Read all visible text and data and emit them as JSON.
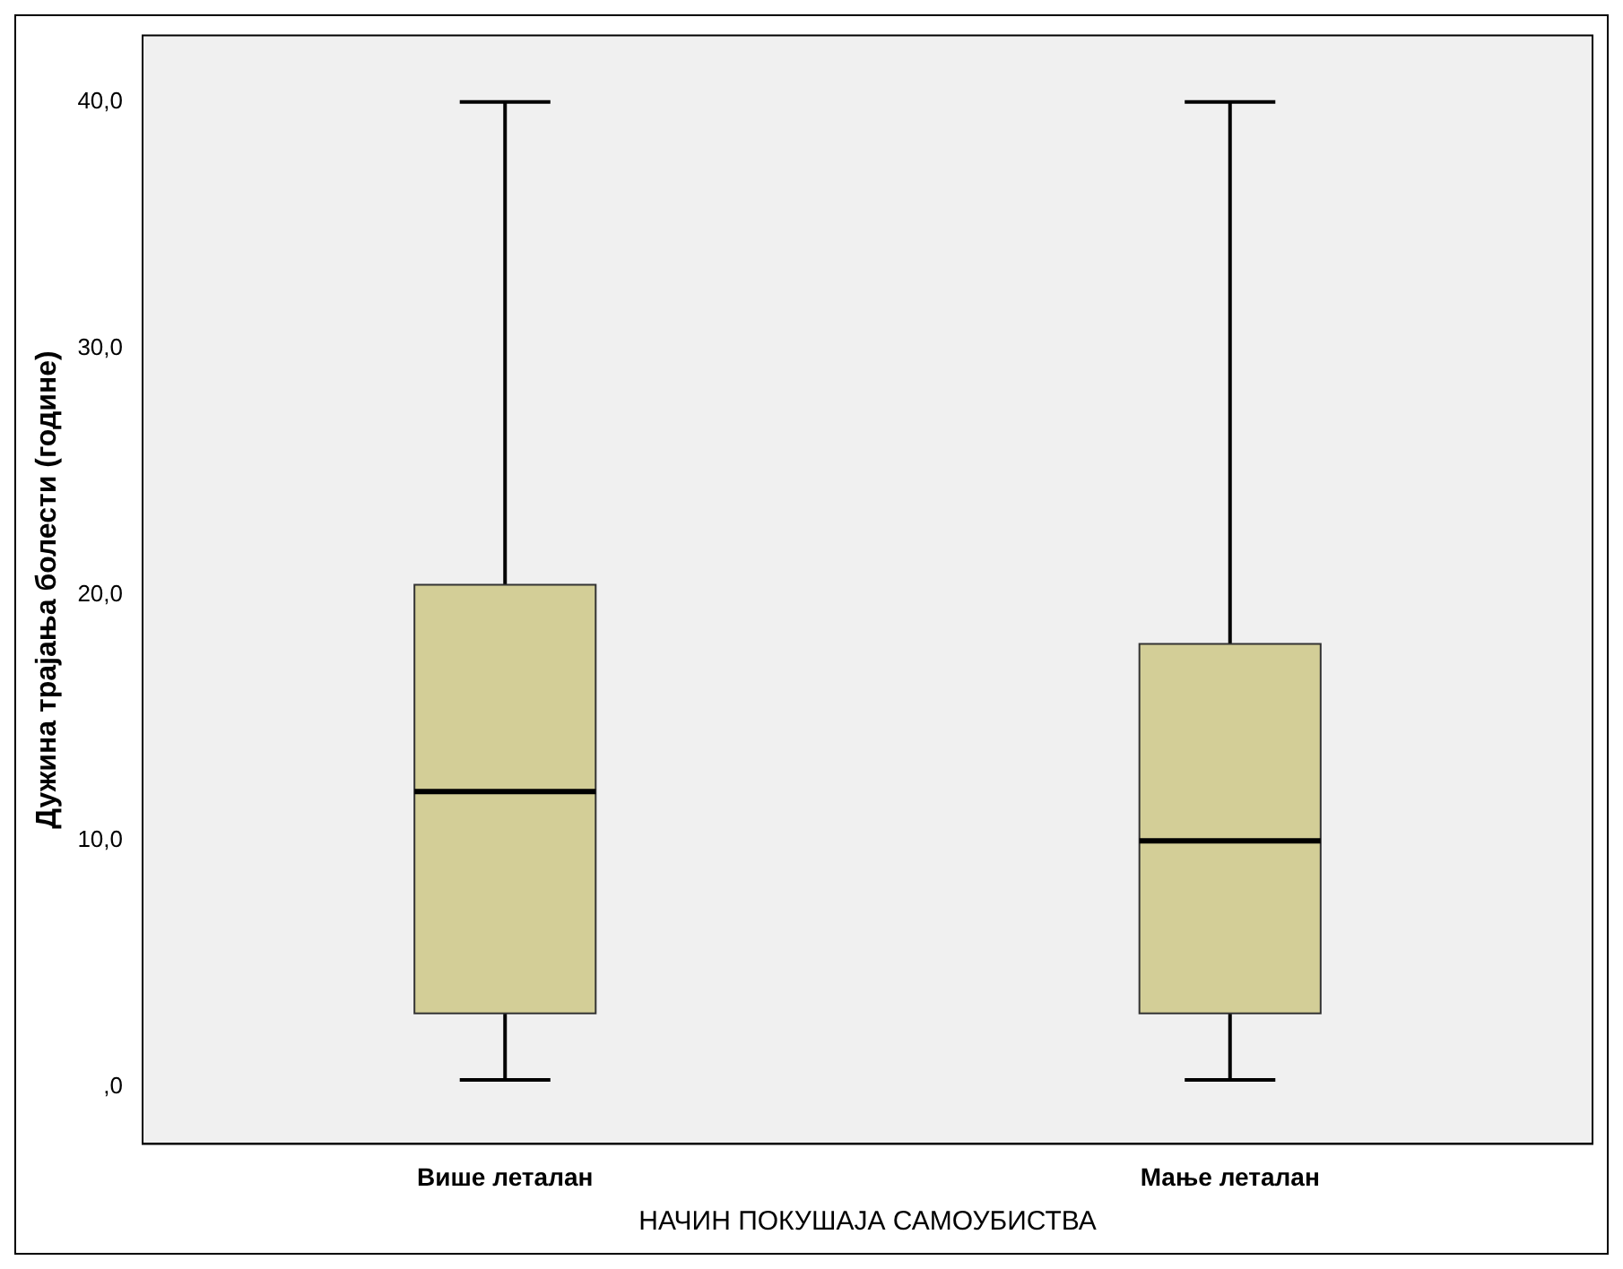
{
  "chart_data": {
    "type": "box",
    "xlabel": "НАЧИН ПОКУШАЈА САМОУБИСТВА",
    "ylabel": "Дужина трајања болести (године)",
    "categories": [
      "Више леталан",
      "Мање леталан"
    ],
    "boxes": [
      {
        "low": 0.3,
        "q1": 3.0,
        "median": 12.0,
        "q3": 20.4,
        "high": 40.0
      },
      {
        "low": 0.3,
        "q1": 3.0,
        "median": 10.0,
        "q3": 18.0,
        "high": 40.0
      }
    ],
    "color": "#d3ce97",
    "ylim": [
      -2.3,
      42.7
    ],
    "yticks": [
      {
        "value": 0,
        "label": ",0"
      },
      {
        "value": 10,
        "label": "10,0"
      },
      {
        "value": 20,
        "label": "20,0"
      },
      {
        "value": 30,
        "label": "30,0"
      },
      {
        "value": 40,
        "label": "40,0"
      }
    ],
    "grid": false,
    "legend": false
  }
}
